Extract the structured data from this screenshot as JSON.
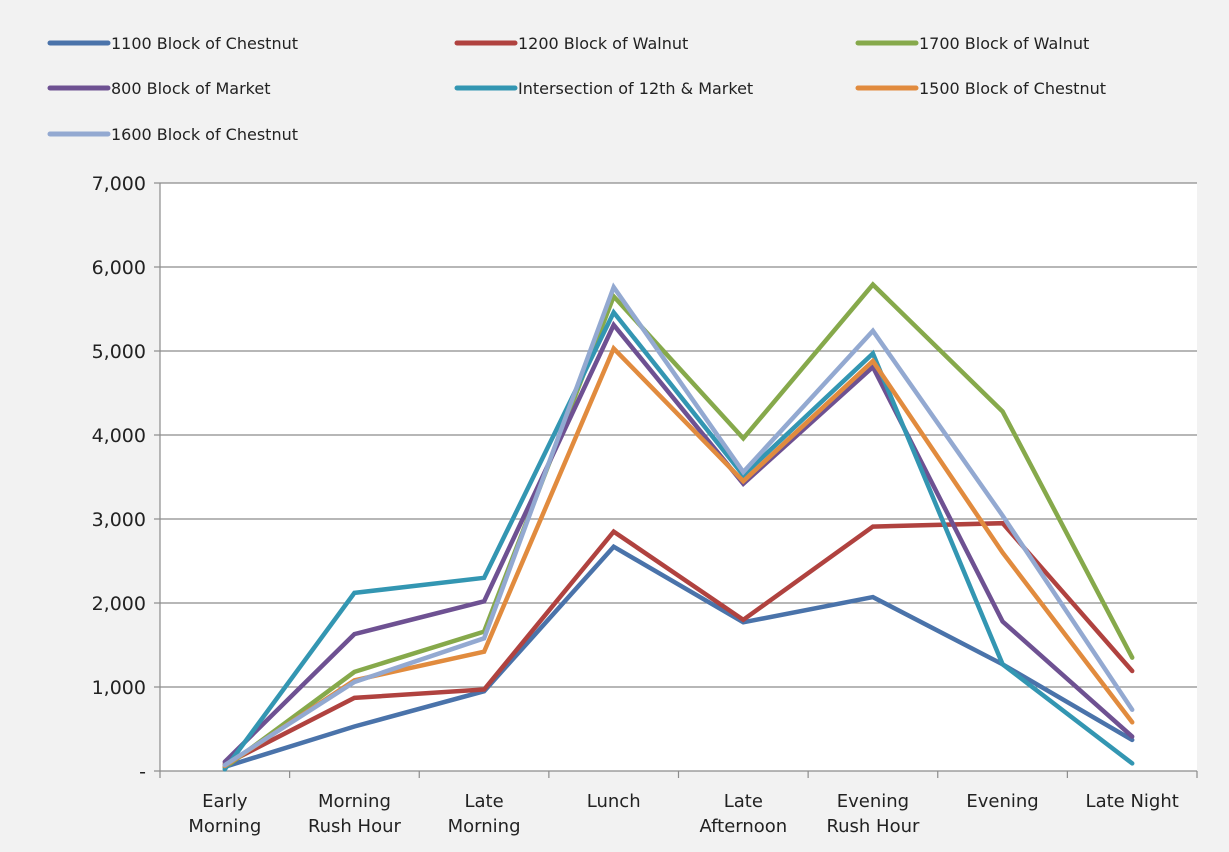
{
  "chart_data": {
    "type": "line",
    "title": "",
    "xlabel": "",
    "ylabel": "",
    "ylim": [
      0,
      7000
    ],
    "y_ticks": [
      0,
      1000,
      2000,
      3000,
      4000,
      5000,
      6000,
      7000
    ],
    "y_tick_labels": [
      "-",
      "1,000",
      "2,000",
      "3,000",
      "4,000",
      "5,000",
      "6,000",
      "7,000"
    ],
    "grid": "horizontal",
    "legend_position": "top",
    "categories": [
      [
        "Early",
        "Morning"
      ],
      [
        "Morning",
        "Rush Hour"
      ],
      [
        "Late",
        "Morning"
      ],
      [
        "Lunch"
      ],
      [
        "Late",
        "Afternoon"
      ],
      [
        "Evening",
        "Rush Hour"
      ],
      [
        "Evening"
      ],
      [
        "Late Night"
      ]
    ],
    "series": [
      {
        "name": "1100 Block of Chestnut",
        "color": "#4a73aa",
        "values": [
          50,
          530,
          950,
          2670,
          1770,
          2070,
          1270,
          370
        ]
      },
      {
        "name": "1200 Block of Walnut",
        "color": "#b0423f",
        "values": [
          80,
          870,
          970,
          2850,
          1800,
          2910,
          2950,
          1190
        ]
      },
      {
        "name": "1700 Block of Walnut",
        "color": "#86a94b",
        "values": [
          40,
          1180,
          1660,
          5650,
          3960,
          5790,
          4280,
          1350
        ]
      },
      {
        "name": "800 Block of Market",
        "color": "#6e5192",
        "values": [
          110,
          1630,
          2020,
          5310,
          3420,
          4810,
          1780,
          410
        ]
      },
      {
        "name": "Intersection of 12th & Market",
        "color": "#3396b2",
        "values": [
          20,
          2120,
          2300,
          5460,
          3520,
          4970,
          1270,
          90
        ]
      },
      {
        "name": "1500 Block of Chestnut",
        "color": "#e18b3e",
        "values": [
          60,
          1080,
          1420,
          5030,
          3450,
          4880,
          2600,
          580
        ]
      },
      {
        "name": "1600 Block of Chestnut",
        "color": "#93a9d1",
        "values": [
          70,
          1060,
          1580,
          5760,
          3560,
          5240,
          3040,
          730
        ]
      }
    ]
  }
}
